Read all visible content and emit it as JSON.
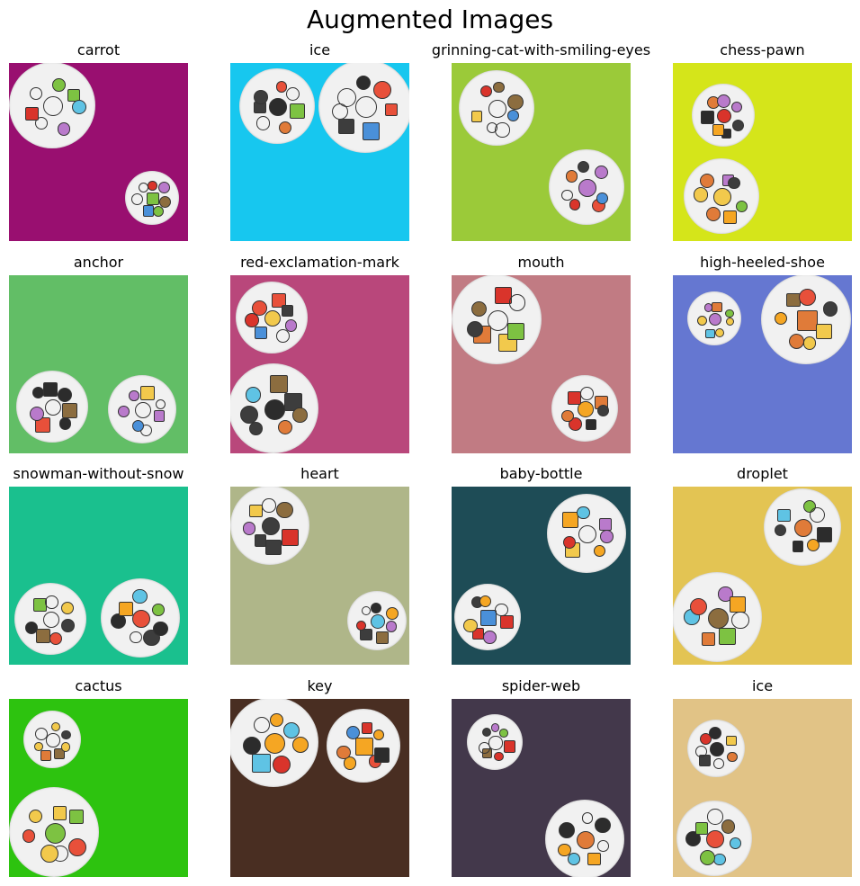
{
  "figure": {
    "title": "Augmented Images"
  },
  "panels": [
    {
      "label": "carrot",
      "bg": "#990f70"
    },
    {
      "label": "ice",
      "bg": "#17c7ef"
    },
    {
      "label": "grinning-cat-with-smiling-eyes",
      "bg": "#9bca39"
    },
    {
      "label": "chess-pawn",
      "bg": "#d5e51a"
    },
    {
      "label": "anchor",
      "bg": "#62be66"
    },
    {
      "label": "red-exclamation-mark",
      "bg": "#b9477b"
    },
    {
      "label": "mouth",
      "bg": "#c17b83"
    },
    {
      "label": "high-heeled-shoe",
      "bg": "#6577d1"
    },
    {
      "label": "snowman-without-snow",
      "bg": "#1ac08e"
    },
    {
      "label": "heart",
      "bg": "#afb689"
    },
    {
      "label": "baby-bottle",
      "bg": "#1e4c56"
    },
    {
      "label": "droplet",
      "bg": "#e3c453"
    },
    {
      "label": "cactus",
      "bg": "#2dc30f"
    },
    {
      "label": "key",
      "bg": "#492e22"
    },
    {
      "label": "spider-web",
      "bg": "#43384b"
    },
    {
      "label": "ice",
      "bg": "#e1c386"
    }
  ]
}
